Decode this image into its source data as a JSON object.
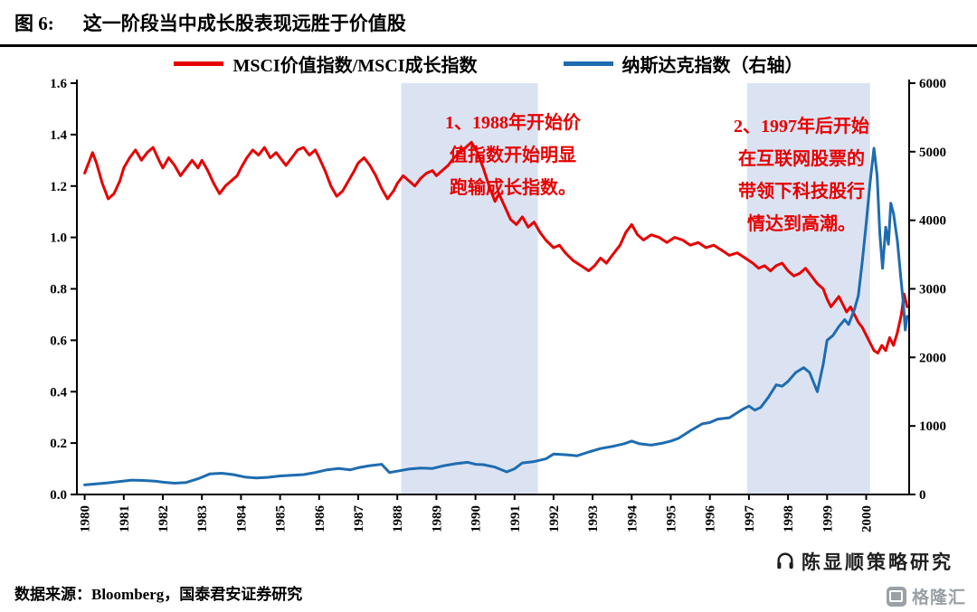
{
  "header": {
    "figure_label": "图 6:",
    "title": "这一阶段当中成长股表现远胜于价值股"
  },
  "legend": [
    {
      "label": "MSCI价值指数/MSCI成长指数",
      "color": "#e60000"
    },
    {
      "label": "纳斯达克指数（右轴）",
      "color": "#1e6cb0"
    }
  ],
  "annotations": [
    {
      "text": "1、1988年开始价\n值指数开始明显\n跑输成长指数。",
      "color": "#e60000"
    },
    {
      "text": "2、1997年后开始\n在互联网股票的\n带领下科技股行\n情达到高潮。",
      "color": "#e60000"
    }
  ],
  "footer": {
    "source": "数据来源：Bloomberg，国泰君安证券研究"
  },
  "watermark": {
    "text": "陈显顺策略研究"
  },
  "logo": {
    "text": "格隆汇"
  },
  "chart_data": {
    "type": "line",
    "title": "这一阶段当中成长股表现远胜于价值股",
    "x_range": [
      1979.8,
      2001.1
    ],
    "band_color": "#dbe3f2",
    "left_axis": {
      "min": 0,
      "max": 1.6,
      "ticks": [
        "0.0",
        "0.2",
        "0.4",
        "0.6",
        "0.8",
        "1.0",
        "1.2",
        "1.4",
        "1.6"
      ]
    },
    "right_axis": {
      "min": 0,
      "max": 6000,
      "ticks": [
        "0",
        "1000",
        "2000",
        "3000",
        "4000",
        "5000",
        "6000"
      ]
    },
    "x_ticks": [
      "1980",
      "1981",
      "1982",
      "1983",
      "1984",
      "1985",
      "1986",
      "1987",
      "1988",
      "1989",
      "1990",
      "1991",
      "1992",
      "1993",
      "1994",
      "1995",
      "1996",
      "1997",
      "1998",
      "1999",
      "2000"
    ],
    "shaded_regions": [
      {
        "from": 1988.1,
        "to": 1991.6
      },
      {
        "from": 1996.95,
        "to": 2000.1
      }
    ],
    "series": [
      {
        "name": "MSCI价值指数/MSCI成长指数",
        "axis": "left",
        "color": "#e60000",
        "points": [
          [
            1980.0,
            1.25
          ],
          [
            1980.1,
            1.29
          ],
          [
            1980.2,
            1.33
          ],
          [
            1980.3,
            1.29
          ],
          [
            1980.45,
            1.21
          ],
          [
            1980.6,
            1.15
          ],
          [
            1980.75,
            1.17
          ],
          [
            1980.9,
            1.22
          ],
          [
            1981.0,
            1.27
          ],
          [
            1981.15,
            1.31
          ],
          [
            1981.3,
            1.34
          ],
          [
            1981.45,
            1.3
          ],
          [
            1981.6,
            1.33
          ],
          [
            1981.75,
            1.35
          ],
          [
            1981.9,
            1.3
          ],
          [
            1982.0,
            1.27
          ],
          [
            1982.15,
            1.31
          ],
          [
            1982.3,
            1.28
          ],
          [
            1982.45,
            1.24
          ],
          [
            1982.6,
            1.27
          ],
          [
            1982.75,
            1.3
          ],
          [
            1982.9,
            1.27
          ],
          [
            1983.0,
            1.3
          ],
          [
            1983.15,
            1.26
          ],
          [
            1983.3,
            1.21
          ],
          [
            1983.45,
            1.17
          ],
          [
            1983.6,
            1.2
          ],
          [
            1983.75,
            1.22
          ],
          [
            1983.9,
            1.24
          ],
          [
            1984.0,
            1.27
          ],
          [
            1984.15,
            1.31
          ],
          [
            1984.3,
            1.34
          ],
          [
            1984.45,
            1.32
          ],
          [
            1984.6,
            1.35
          ],
          [
            1984.75,
            1.31
          ],
          [
            1984.9,
            1.33
          ],
          [
            1985.0,
            1.31
          ],
          [
            1985.15,
            1.28
          ],
          [
            1985.3,
            1.31
          ],
          [
            1985.45,
            1.34
          ],
          [
            1985.6,
            1.35
          ],
          [
            1985.75,
            1.32
          ],
          [
            1985.9,
            1.34
          ],
          [
            1986.0,
            1.31
          ],
          [
            1986.15,
            1.26
          ],
          [
            1986.3,
            1.2
          ],
          [
            1986.45,
            1.16
          ],
          [
            1986.6,
            1.18
          ],
          [
            1986.75,
            1.22
          ],
          [
            1986.9,
            1.26
          ],
          [
            1987.0,
            1.29
          ],
          [
            1987.15,
            1.31
          ],
          [
            1987.3,
            1.28
          ],
          [
            1987.45,
            1.24
          ],
          [
            1987.6,
            1.19
          ],
          [
            1987.75,
            1.15
          ],
          [
            1987.9,
            1.18
          ],
          [
            1988.0,
            1.21
          ],
          [
            1988.15,
            1.24
          ],
          [
            1988.3,
            1.22
          ],
          [
            1988.45,
            1.2
          ],
          [
            1988.6,
            1.23
          ],
          [
            1988.75,
            1.25
          ],
          [
            1988.9,
            1.26
          ],
          [
            1989.0,
            1.24
          ],
          [
            1989.15,
            1.26
          ],
          [
            1989.3,
            1.28
          ],
          [
            1989.45,
            1.31
          ],
          [
            1989.6,
            1.33
          ],
          [
            1989.75,
            1.35
          ],
          [
            1989.9,
            1.37
          ],
          [
            1990.05,
            1.33
          ],
          [
            1990.2,
            1.27
          ],
          [
            1990.35,
            1.2
          ],
          [
            1990.5,
            1.14
          ],
          [
            1990.6,
            1.17
          ],
          [
            1990.75,
            1.12
          ],
          [
            1990.9,
            1.07
          ],
          [
            1991.05,
            1.05
          ],
          [
            1991.2,
            1.08
          ],
          [
            1991.35,
            1.04
          ],
          [
            1991.5,
            1.06
          ],
          [
            1991.65,
            1.02
          ],
          [
            1991.8,
            0.99
          ],
          [
            1992.0,
            0.96
          ],
          [
            1992.15,
            0.97
          ],
          [
            1992.3,
            0.94
          ],
          [
            1992.5,
            0.91
          ],
          [
            1992.7,
            0.89
          ],
          [
            1992.9,
            0.87
          ],
          [
            1993.05,
            0.89
          ],
          [
            1993.2,
            0.92
          ],
          [
            1993.35,
            0.9
          ],
          [
            1993.5,
            0.93
          ],
          [
            1993.7,
            0.97
          ],
          [
            1993.85,
            1.02
          ],
          [
            1994.0,
            1.05
          ],
          [
            1994.15,
            1.01
          ],
          [
            1994.3,
            0.99
          ],
          [
            1994.5,
            1.01
          ],
          [
            1994.7,
            1.0
          ],
          [
            1994.9,
            0.98
          ],
          [
            1995.1,
            1.0
          ],
          [
            1995.3,
            0.99
          ],
          [
            1995.5,
            0.97
          ],
          [
            1995.7,
            0.98
          ],
          [
            1995.9,
            0.96
          ],
          [
            1996.1,
            0.97
          ],
          [
            1996.3,
            0.95
          ],
          [
            1996.5,
            0.93
          ],
          [
            1996.7,
            0.94
          ],
          [
            1996.9,
            0.92
          ],
          [
            1997.1,
            0.9
          ],
          [
            1997.25,
            0.88
          ],
          [
            1997.4,
            0.89
          ],
          [
            1997.55,
            0.87
          ],
          [
            1997.7,
            0.89
          ],
          [
            1997.85,
            0.9
          ],
          [
            1998.0,
            0.87
          ],
          [
            1998.15,
            0.85
          ],
          [
            1998.3,
            0.86
          ],
          [
            1998.45,
            0.88
          ],
          [
            1998.6,
            0.85
          ],
          [
            1998.75,
            0.82
          ],
          [
            1998.9,
            0.8
          ],
          [
            1999.0,
            0.76
          ],
          [
            1999.1,
            0.73
          ],
          [
            1999.2,
            0.75
          ],
          [
            1999.3,
            0.77
          ],
          [
            1999.4,
            0.74
          ],
          [
            1999.5,
            0.71
          ],
          [
            1999.6,
            0.73
          ],
          [
            1999.7,
            0.7
          ],
          [
            1999.8,
            0.67
          ],
          [
            1999.9,
            0.65
          ],
          [
            2000.0,
            0.62
          ],
          [
            2000.1,
            0.59
          ],
          [
            2000.2,
            0.56
          ],
          [
            2000.3,
            0.55
          ],
          [
            2000.4,
            0.58
          ],
          [
            2000.5,
            0.56
          ],
          [
            2000.6,
            0.61
          ],
          [
            2000.7,
            0.58
          ],
          [
            2000.8,
            0.63
          ],
          [
            2000.9,
            0.7
          ],
          [
            2000.97,
            0.78
          ],
          [
            2001.05,
            0.73
          ]
        ]
      },
      {
        "name": "纳斯达克指数（右轴）",
        "axis": "right",
        "color": "#1e6cb0",
        "points": [
          [
            1980.0,
            140
          ],
          [
            1980.3,
            155
          ],
          [
            1980.6,
            170
          ],
          [
            1980.9,
            190
          ],
          [
            1981.2,
            210
          ],
          [
            1981.5,
            205
          ],
          [
            1981.8,
            195
          ],
          [
            1982.0,
            180
          ],
          [
            1982.3,
            165
          ],
          [
            1982.6,
            175
          ],
          [
            1982.9,
            230
          ],
          [
            1983.2,
            300
          ],
          [
            1983.5,
            310
          ],
          [
            1983.8,
            290
          ],
          [
            1984.1,
            255
          ],
          [
            1984.4,
            240
          ],
          [
            1984.7,
            250
          ],
          [
            1985.0,
            270
          ],
          [
            1985.3,
            280
          ],
          [
            1985.6,
            290
          ],
          [
            1985.9,
            320
          ],
          [
            1986.2,
            360
          ],
          [
            1986.5,
            380
          ],
          [
            1986.8,
            360
          ],
          [
            1987.0,
            390
          ],
          [
            1987.3,
            420
          ],
          [
            1987.6,
            440
          ],
          [
            1987.8,
            320
          ],
          [
            1988.0,
            340
          ],
          [
            1988.3,
            370
          ],
          [
            1988.6,
            385
          ],
          [
            1988.9,
            380
          ],
          [
            1989.2,
            420
          ],
          [
            1989.5,
            450
          ],
          [
            1989.8,
            470
          ],
          [
            1990.0,
            440
          ],
          [
            1990.2,
            435
          ],
          [
            1990.5,
            400
          ],
          [
            1990.8,
            330
          ],
          [
            1991.0,
            375
          ],
          [
            1991.2,
            460
          ],
          [
            1991.5,
            480
          ],
          [
            1991.8,
            520
          ],
          [
            1992.0,
            590
          ],
          [
            1992.3,
            580
          ],
          [
            1992.6,
            565
          ],
          [
            1992.9,
            620
          ],
          [
            1993.2,
            670
          ],
          [
            1993.5,
            700
          ],
          [
            1993.8,
            740
          ],
          [
            1994.0,
            780
          ],
          [
            1994.2,
            740
          ],
          [
            1994.5,
            720
          ],
          [
            1994.8,
            750
          ],
          [
            1995.0,
            780
          ],
          [
            1995.2,
            820
          ],
          [
            1995.5,
            930
          ],
          [
            1995.8,
            1030
          ],
          [
            1996.0,
            1050
          ],
          [
            1996.2,
            1100
          ],
          [
            1996.5,
            1120
          ],
          [
            1996.8,
            1230
          ],
          [
            1997.0,
            1290
          ],
          [
            1997.15,
            1230
          ],
          [
            1997.3,
            1270
          ],
          [
            1997.5,
            1420
          ],
          [
            1997.7,
            1600
          ],
          [
            1997.85,
            1580
          ],
          [
            1998.0,
            1650
          ],
          [
            1998.2,
            1780
          ],
          [
            1998.4,
            1850
          ],
          [
            1998.55,
            1780
          ],
          [
            1998.75,
            1500
          ],
          [
            1998.9,
            1900
          ],
          [
            1999.0,
            2250
          ],
          [
            1999.15,
            2320
          ],
          [
            1999.3,
            2450
          ],
          [
            1999.45,
            2550
          ],
          [
            1999.55,
            2480
          ],
          [
            1999.7,
            2700
          ],
          [
            1999.8,
            2900
          ],
          [
            1999.9,
            3400
          ],
          [
            2000.0,
            3950
          ],
          [
            2000.1,
            4550
          ],
          [
            2000.2,
            5050
          ],
          [
            2000.28,
            4650
          ],
          [
            2000.35,
            3800
          ],
          [
            2000.42,
            3300
          ],
          [
            2000.5,
            3900
          ],
          [
            2000.57,
            3650
          ],
          [
            2000.63,
            4250
          ],
          [
            2000.7,
            4100
          ],
          [
            2000.8,
            3700
          ],
          [
            2000.88,
            3200
          ],
          [
            2000.95,
            2800
          ],
          [
            2001.0,
            2400
          ],
          [
            2001.05,
            2600
          ]
        ]
      }
    ]
  }
}
